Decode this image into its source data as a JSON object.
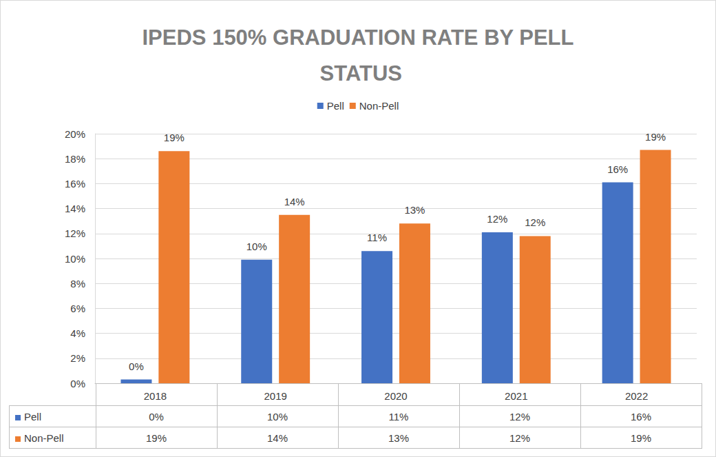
{
  "chart_data": {
    "type": "bar",
    "title": "IPEDS 150% GRADUATION RATE BY PELL STATUS",
    "categories": [
      "2018",
      "2019",
      "2020",
      "2021",
      "2022"
    ],
    "series": [
      {
        "name": "Pell",
        "color": "#4472c4",
        "values": [
          0.3,
          9.9,
          10.6,
          12.1,
          16.1
        ],
        "value_labels": [
          "0%",
          "10%",
          "11%",
          "12%",
          "16%"
        ]
      },
      {
        "name": "Non-Pell",
        "color": "#ed7d31",
        "values": [
          18.6,
          13.5,
          12.8,
          11.8,
          18.7
        ],
        "value_labels": [
          "19%",
          "14%",
          "13%",
          "12%",
          "19%"
        ]
      }
    ],
    "ylim": [
      0,
      20
    ],
    "yticks": [
      {
        "value": 0,
        "label": "0%"
      },
      {
        "value": 2,
        "label": "2%"
      },
      {
        "value": 4,
        "label": "4%"
      },
      {
        "value": 6,
        "label": "6%"
      },
      {
        "value": 8,
        "label": "8%"
      },
      {
        "value": 10,
        "label": "10%"
      },
      {
        "value": 12,
        "label": "12%"
      },
      {
        "value": 14,
        "label": "14%"
      },
      {
        "value": 16,
        "label": "16%"
      },
      {
        "value": 18,
        "label": "18%"
      },
      {
        "value": 20,
        "label": "20%"
      }
    ],
    "grid": true,
    "legend": "top",
    "data_labels": true
  }
}
